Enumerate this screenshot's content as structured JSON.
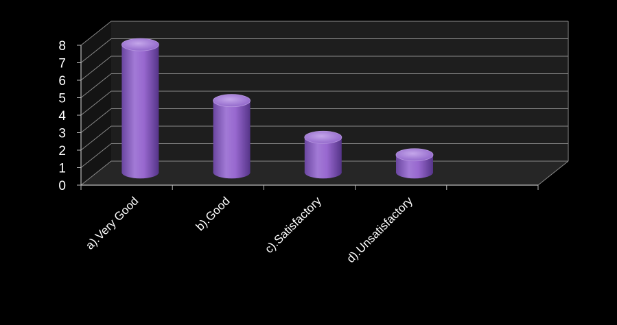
{
  "chart_data": {
    "type": "bar",
    "style": "3d-cylinder",
    "categories": [
      "a).Very Good",
      "b).Good",
      "c).Satisfactory",
      "d).Unsatisfactory"
    ],
    "values": [
      7.3,
      4.1,
      2.0,
      1.0
    ],
    "ylim": [
      0,
      8
    ],
    "y_ticks": [
      "0",
      "1",
      "2",
      "3",
      "4",
      "5",
      "6",
      "7",
      "8"
    ],
    "grid": true,
    "legend": "none",
    "colors": {
      "bar": "#9b6fd0",
      "background": "#000000",
      "wall": "#1e1e1e",
      "grid": "#8a8a8a",
      "text": "#ffffff"
    }
  }
}
